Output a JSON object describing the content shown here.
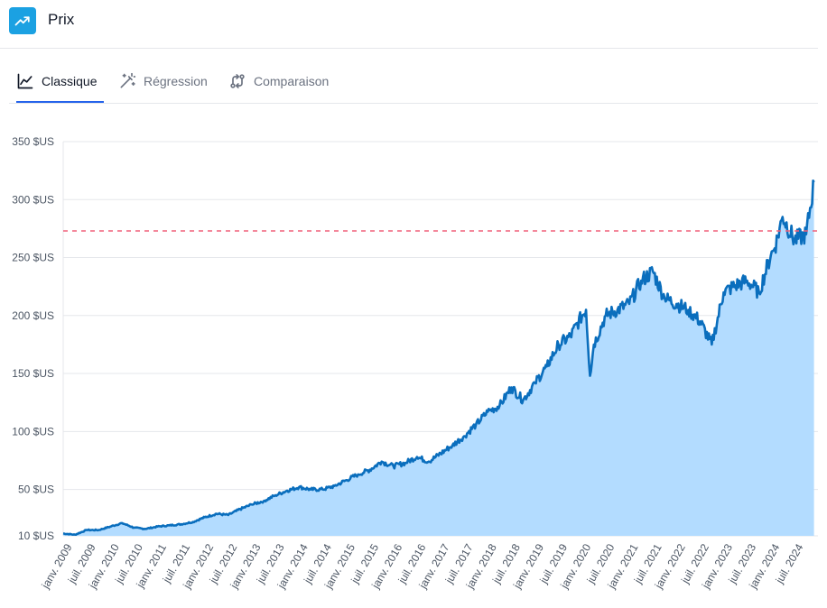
{
  "header": {
    "title": "Prix",
    "icon": "trending-up-icon",
    "icon_bg": "#1ba1e2"
  },
  "tabs": [
    {
      "label": "Classique",
      "icon": "line-chart-icon",
      "active": true
    },
    {
      "label": "Régression",
      "icon": "magic-wand-icon",
      "active": false
    },
    {
      "label": "Comparaison",
      "icon": "compare-arrows-icon",
      "active": false
    }
  ],
  "chart_data": {
    "type": "area",
    "y_ticks": [
      "10 $US",
      "50 $US",
      "100 $US",
      "150 $US",
      "200 $US",
      "250 $US",
      "300 $US",
      "350 $US"
    ],
    "y_tick_values": [
      10,
      50,
      100,
      150,
      200,
      250,
      300,
      350
    ],
    "ylim": [
      10,
      350
    ],
    "x_ticks": [
      "janv. 2009",
      "juil. 2009",
      "janv. 2010",
      "juil. 2010",
      "janv. 2011",
      "juil. 2011",
      "janv. 2012",
      "juil. 2012",
      "janv. 2013",
      "juil. 2013",
      "janv. 2014",
      "juil. 2014",
      "janv. 2015",
      "juil. 2015",
      "janv. 2016",
      "juil. 2016",
      "janv. 2017",
      "juil. 2017",
      "janv. 2018",
      "juil. 2018",
      "janv. 2019",
      "juil. 2019",
      "janv. 2020",
      "juil. 2020",
      "janv. 2021",
      "juil. 2021",
      "janv. 2022",
      "juil. 2022",
      "janv. 2023",
      "juil. 2023",
      "janv. 2024",
      "juil. 2024"
    ],
    "x_tick_dates": [
      "2009-01",
      "2009-07",
      "2010-01",
      "2010-07",
      "2011-01",
      "2011-07",
      "2012-01",
      "2012-07",
      "2013-01",
      "2013-07",
      "2014-01",
      "2014-07",
      "2015-01",
      "2015-07",
      "2016-01",
      "2016-07",
      "2017-01",
      "2017-07",
      "2018-01",
      "2018-07",
      "2019-01",
      "2019-07",
      "2020-01",
      "2020-07",
      "2021-01",
      "2021-07",
      "2022-01",
      "2022-07",
      "2023-01",
      "2023-07",
      "2024-01",
      "2024-07"
    ],
    "xlim": [
      "2009-01",
      "2025-01"
    ],
    "reference_line": 273,
    "series": [
      {
        "x": [
          "2009-01",
          "2009-04",
          "2009-07",
          "2009-10",
          "2010-01",
          "2010-04",
          "2010-07",
          "2010-10",
          "2011-01",
          "2011-04",
          "2011-07",
          "2011-10",
          "2012-01",
          "2012-04",
          "2012-07",
          "2012-10",
          "2013-01",
          "2013-04",
          "2013-07",
          "2013-10",
          "2014-01",
          "2014-04",
          "2014-07",
          "2014-10",
          "2015-01",
          "2015-04",
          "2015-07",
          "2015-10",
          "2016-01",
          "2016-04",
          "2016-07",
          "2016-10",
          "2017-01",
          "2017-04",
          "2017-07",
          "2017-10",
          "2018-01",
          "2018-04",
          "2018-07",
          "2018-10",
          "2019-01",
          "2019-04",
          "2019-07",
          "2019-10",
          "2020-01",
          "2020-02",
          "2020-03",
          "2020-04",
          "2020-07",
          "2020-10",
          "2021-01",
          "2021-04",
          "2021-07",
          "2021-10",
          "2022-01",
          "2022-04",
          "2022-07",
          "2022-10",
          "2023-01",
          "2023-04",
          "2023-07",
          "2023-10",
          "2024-01",
          "2024-02",
          "2024-04",
          "2024-07",
          "2024-10",
          "2024-12"
        ],
        "values": [
          12,
          11,
          15,
          15,
          18,
          21,
          17,
          16,
          18,
          19,
          20,
          22,
          26,
          29,
          28,
          33,
          37,
          40,
          45,
          49,
          52,
          50,
          50,
          53,
          58,
          63,
          67,
          74,
          70,
          73,
          78,
          74,
          81,
          88,
          96,
          106,
          117,
          122,
          138,
          127,
          142,
          156,
          175,
          182,
          200,
          205,
          148,
          175,
          200,
          205,
          210,
          230,
          238,
          215,
          210,
          205,
          195,
          175,
          220,
          226,
          230,
          220,
          252,
          258,
          285,
          265,
          270,
          315
        ]
      }
    ]
  }
}
